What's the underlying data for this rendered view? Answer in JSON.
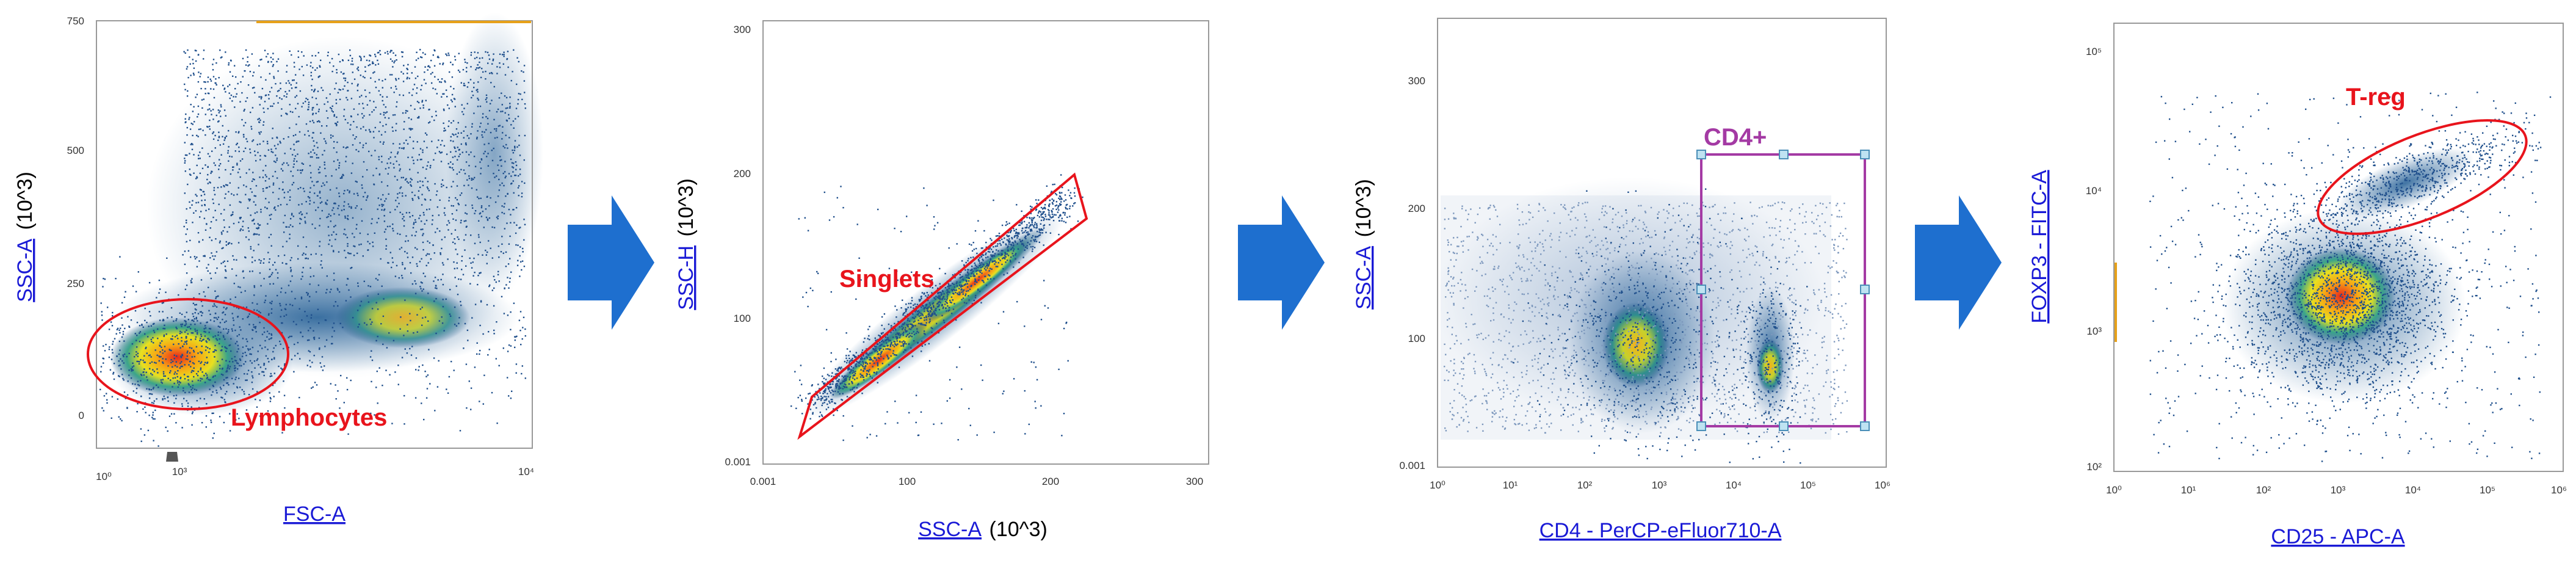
{
  "colors": {
    "gate_red": "#e8141c",
    "gate_purple": "#a43aa4",
    "arrow_blue": "#1e6fcf",
    "axis_link": "#1a1ad6"
  },
  "chart_data": [
    {
      "type": "scatter",
      "title": "",
      "xlabel": "FSC-A",
      "ylabel": "SSC-A",
      "ylabel_suffix": "(10^3)",
      "x_ticks": [
        "10⁰",
        "10³",
        "10⁴"
      ],
      "y_ticks": [
        "750",
        "500",
        "250",
        "0"
      ],
      "gate": {
        "shape": "ellipse",
        "label": "Lymphocytes",
        "color": "#e8141c"
      }
    },
    {
      "type": "scatter",
      "title": "",
      "xlabel": "SSC-A",
      "xlabel_suffix": "(10^3)",
      "ylabel": "SSC-H",
      "ylabel_suffix": "(10^3)",
      "x_ticks": [
        "0.001",
        "100",
        "200",
        "300"
      ],
      "y_ticks": [
        "300",
        "200",
        "100",
        "0.001"
      ],
      "gate": {
        "shape": "polygon",
        "label": "Singlets",
        "color": "#e8141c"
      }
    },
    {
      "type": "scatter",
      "title": "",
      "xlabel": "CD4 - PerCP-eFluor710-A",
      "ylabel": "SSC-A",
      "ylabel_suffix": "(10^3)",
      "x_ticks": [
        "10⁰",
        "10¹",
        "10²",
        "10³",
        "10⁴",
        "10⁵",
        "10⁶"
      ],
      "y_ticks": [
        "300",
        "200",
        "100",
        "0.001"
      ],
      "gate": {
        "shape": "rectangle",
        "label": "CD4+",
        "color": "#a43aa4"
      }
    },
    {
      "type": "scatter",
      "title": "",
      "xlabel": "CD25 - APC-A",
      "ylabel": "FOXP3 - FITC-A",
      "x_ticks": [
        "10⁰",
        "10¹",
        "10²",
        "10³",
        "10⁴",
        "10⁵",
        "10⁶"
      ],
      "y_ticks": [
        "10⁵",
        "10⁴",
        "10³",
        "10²"
      ],
      "gate": {
        "shape": "ellipse",
        "label": "T-reg",
        "color": "#e8141c"
      }
    }
  ]
}
